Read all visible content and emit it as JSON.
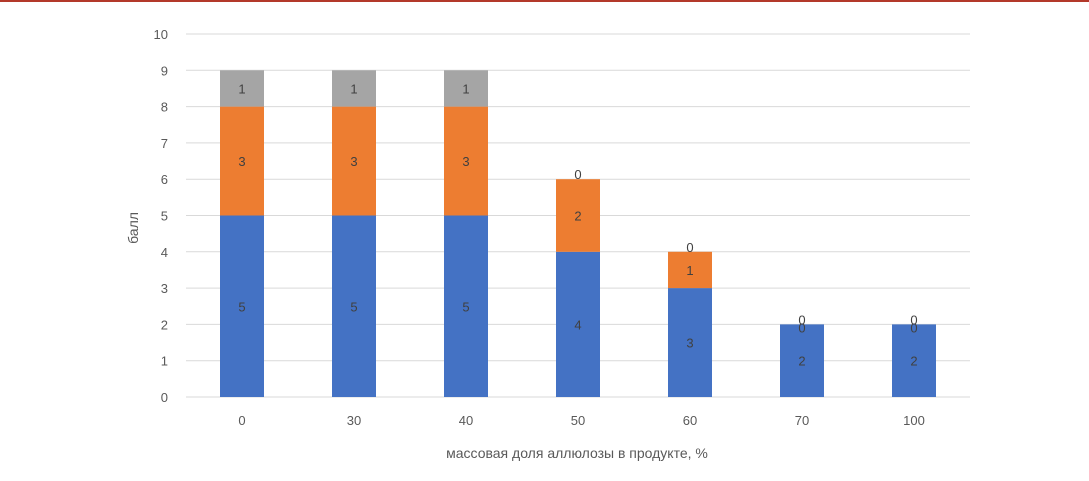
{
  "chart_data": {
    "type": "bar",
    "stacked": true,
    "categories": [
      "0",
      "30",
      "40",
      "50",
      "60",
      "70",
      "100"
    ],
    "series": [
      {
        "values": [
          5,
          5,
          5,
          4,
          3,
          2,
          2
        ],
        "color": "#4472c4"
      },
      {
        "values": [
          3,
          3,
          3,
          2,
          1,
          0,
          0
        ],
        "color": "#ed7d31"
      },
      {
        "values": [
          1,
          1,
          1,
          0,
          0,
          0,
          0
        ],
        "color": "#a5a5a5"
      }
    ],
    "xlabel": "массовая доля аллюлозы в продукте, %",
    "ylabel": "балл",
    "ylim": [
      0,
      10
    ],
    "yticks": [
      "0",
      "1",
      "2",
      "3",
      "4",
      "5",
      "6",
      "7",
      "8",
      "9",
      "10"
    ],
    "grid": true,
    "legend": "none"
  }
}
